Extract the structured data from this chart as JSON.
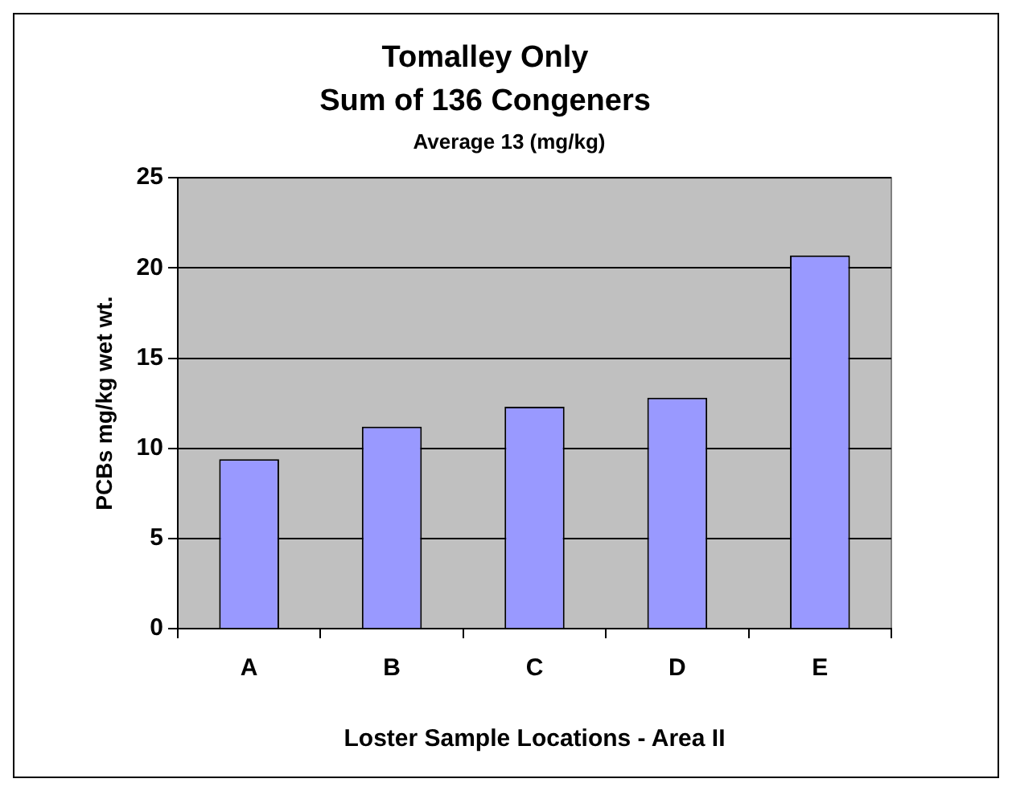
{
  "chart_data": {
    "type": "bar",
    "title": "Tomalley Only",
    "subtitle": "Sum of 136 Congeners",
    "annotations": [
      "Average 13 (mg/kg)"
    ],
    "xlabel": "Loster Sample Locations - Area II",
    "ylabel": "PCBs mg/kg wet wt.",
    "categories": [
      "A",
      "B",
      "C",
      "D",
      "E"
    ],
    "values": [
      9.4,
      11.2,
      12.3,
      12.8,
      20.7
    ],
    "color": "#9999ff",
    "ylim": [
      0,
      25
    ],
    "yticks": [
      0,
      5,
      10,
      15,
      20,
      25
    ],
    "grid": "y",
    "legend": false
  }
}
